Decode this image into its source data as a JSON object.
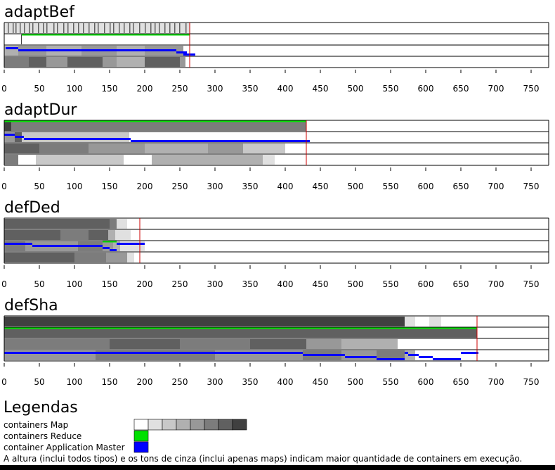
{
  "chart_data": {
    "type": "timeline",
    "x_axis": {
      "min": 0,
      "max": 775,
      "ticks": [
        0,
        50,
        100,
        150,
        200,
        250,
        300,
        350,
        400,
        450,
        500,
        550,
        600,
        650,
        700,
        750
      ]
    },
    "colors": {
      "map_levels": [
        "#ffffff",
        "#e0e0e0",
        "#c8c8c8",
        "#b0b0b0",
        "#989898",
        "#7c7c7c",
        "#606060",
        "#404040"
      ],
      "reduce": "#00e000",
      "app_master": "#0000ff",
      "end_marker": "#cc0000",
      "grid": "#000000"
    },
    "panels": [
      {
        "title": "adaptBef",
        "end_time": 264,
        "rows": [
          {
            "end": 264,
            "segments": [
              [
                0,
                265,
                1
              ],
              [
                5,
                5,
                6
              ],
              [
                12,
                12,
                6
              ],
              [
                16,
                16,
                6
              ],
              [
                22,
                22,
                6
              ],
              [
                28,
                28,
                6
              ],
              [
                35,
                35,
                6
              ],
              [
                40,
                40,
                6
              ],
              [
                48,
                48,
                6
              ],
              [
                55,
                55,
                6
              ],
              [
                60,
                60,
                6
              ],
              [
                70,
                70,
                6
              ],
              [
                75,
                75,
                6
              ],
              [
                84,
                84,
                6
              ],
              [
                90,
                90,
                6
              ],
              [
                98,
                98,
                6
              ],
              [
                105,
                105,
                6
              ],
              [
                112,
                112,
                6
              ],
              [
                120,
                120,
                6
              ],
              [
                128,
                128,
                6
              ],
              [
                133,
                133,
                6
              ],
              [
                142,
                142,
                6
              ],
              [
                150,
                150,
                6
              ],
              [
                155,
                155,
                6
              ],
              [
                163,
                163,
                6
              ],
              [
                170,
                170,
                6
              ],
              [
                178,
                178,
                6
              ],
              [
                183,
                183,
                6
              ],
              [
                192,
                192,
                6
              ],
              [
                200,
                200,
                6
              ],
              [
                208,
                208,
                6
              ],
              [
                214,
                214,
                6
              ],
              [
                220,
                220,
                6
              ],
              [
                228,
                228,
                6
              ],
              [
                235,
                235,
                6
              ],
              [
                242,
                242,
                6
              ],
              [
                249,
                249,
                6
              ],
              [
                258,
                258,
                6
              ]
            ],
            "reduce": [],
            "am": []
          },
          {
            "end": 268,
            "segments": [
              [
                0,
                24,
                0
              ],
              [
                24,
                25,
                7
              ],
              [
                25,
                264,
                0
              ]
            ],
            "reduce": [
              [
                25,
                264
              ]
            ],
            "am": []
          },
          {
            "end": 264,
            "segments": [
              [
                0,
                20,
                3
              ],
              [
                20,
                60,
                4
              ],
              [
                60,
                110,
                3
              ],
              [
                110,
                160,
                4
              ],
              [
                160,
                200,
                3
              ],
              [
                200,
                255,
                4
              ]
            ],
            "reduce": [],
            "am": [
              [
                2,
                20
              ],
              [
                20,
                245
              ],
              [
                245,
                260
              ],
              [
                255,
                272
              ]
            ]
          },
          {
            "end": 264,
            "segments": [
              [
                0,
                35,
                5
              ],
              [
                35,
                60,
                6
              ],
              [
                60,
                90,
                4
              ],
              [
                90,
                140,
                6
              ],
              [
                140,
                160,
                4
              ],
              [
                160,
                200,
                3
              ],
              [
                200,
                250,
                6
              ],
              [
                250,
                258,
                4
              ]
            ],
            "reduce": [],
            "am": []
          }
        ]
      },
      {
        "title": "adaptDur",
        "end_time": 430,
        "rows": [
          {
            "end": 430,
            "segments": [
              [
                0,
                10,
                7
              ],
              [
                10,
                430,
                5
              ]
            ],
            "reduce": [
              [
                0,
                430
              ]
            ],
            "am": []
          },
          {
            "end": 436,
            "segments": [
              [
                0,
                15,
                4
              ],
              [
                15,
                25,
                6
              ],
              [
                25,
                178,
                2
              ],
              [
                178,
                436,
                0
              ]
            ],
            "reduce": [],
            "am": [
              [
                0,
                15
              ],
              [
                15,
                28
              ],
              [
                28,
                180
              ],
              [
                180,
                435
              ]
            ]
          },
          {
            "end": 430,
            "segments": [
              [
                0,
                50,
                6
              ],
              [
                50,
                120,
                5
              ],
              [
                120,
                200,
                4
              ],
              [
                200,
                290,
                3
              ],
              [
                290,
                340,
                4
              ],
              [
                340,
                400,
                2
              ],
              [
                400,
                415,
                0
              ]
            ],
            "reduce": [],
            "am": []
          },
          {
            "end": 430,
            "segments": [
              [
                0,
                20,
                5
              ],
              [
                20,
                45,
                0
              ],
              [
                45,
                170,
                2
              ],
              [
                170,
                210,
                0
              ],
              [
                210,
                368,
                3
              ],
              [
                368,
                385,
                1
              ]
            ],
            "reduce": [],
            "am": []
          }
        ]
      },
      {
        "title": "defDed",
        "end_time": 193,
        "rows": [
          {
            "end": 193,
            "segments": [
              [
                0,
                90,
                6
              ],
              [
                90,
                150,
                6
              ],
              [
                150,
                160,
                5
              ],
              [
                160,
                175,
                1
              ]
            ],
            "reduce": [],
            "am": []
          },
          {
            "end": 193,
            "segments": [
              [
                0,
                40,
                6
              ],
              [
                40,
                80,
                6
              ],
              [
                80,
                120,
                5
              ],
              [
                120,
                148,
                6
              ],
              [
                148,
                158,
                3
              ],
              [
                158,
                180,
                1
              ]
            ],
            "reduce": [],
            "am": []
          },
          {
            "end": 193,
            "segments": [
              [
                0,
                30,
                5
              ],
              [
                30,
                105,
                4
              ],
              [
                105,
                140,
                5
              ],
              [
                140,
                155,
                4
              ],
              [
                155,
                165,
                3
              ],
              [
                165,
                200,
                1
              ]
            ],
            "reduce": [
              [
                140,
                160
              ]
            ],
            "am": [
              [
                0,
                40
              ],
              [
                40,
                140
              ],
              [
                140,
                150
              ],
              [
                150,
                160
              ],
              [
                160,
                200
              ]
            ]
          },
          {
            "end": 193,
            "segments": [
              [
                0,
                30,
                6
              ],
              [
                30,
                100,
                6
              ],
              [
                100,
                145,
                5
              ],
              [
                145,
                175,
                4
              ],
              [
                175,
                185,
                1
              ]
            ],
            "reduce": [],
            "am": []
          }
        ]
      },
      {
        "title": "defSha",
        "end_time": 673,
        "rows": [
          {
            "end": 673,
            "segments": [
              [
                0,
                570,
                7
              ],
              [
                570,
                585,
                1
              ],
              [
                585,
                605,
                0
              ],
              [
                605,
                622,
                1
              ]
            ],
            "reduce": [],
            "am": []
          },
          {
            "end": 673,
            "segments": [
              [
                0,
                673,
                6
              ]
            ],
            "reduce": [
              [
                0,
                673
              ]
            ],
            "am": []
          },
          {
            "end": 673,
            "segments": [
              [
                0,
                150,
                5
              ],
              [
                150,
                250,
                6
              ],
              [
                250,
                350,
                5
              ],
              [
                350,
                430,
                6
              ],
              [
                430,
                480,
                4
              ],
              [
                480,
                560,
                3
              ],
              [
                560,
                610,
                0
              ],
              [
                610,
                640,
                0
              ]
            ],
            "reduce": [],
            "am": []
          },
          {
            "end": 673,
            "segments": [
              [
                0,
                130,
                4
              ],
              [
                130,
                300,
                5
              ],
              [
                300,
                425,
                4
              ],
              [
                425,
                480,
                5
              ],
              [
                480,
                530,
                4
              ],
              [
                530,
                570,
                5
              ],
              [
                570,
                585,
                3
              ],
              [
                585,
                673,
                0
              ]
            ],
            "reduce": [],
            "am": [
              [
                0,
                425
              ],
              [
                425,
                485
              ],
              [
                485,
                530
              ],
              [
                530,
                570
              ],
              [
                570,
                575
              ],
              [
                575,
                590
              ],
              [
                590,
                610
              ],
              [
                610,
                650
              ],
              [
                650,
                675
              ]
            ]
          }
        ]
      }
    ]
  },
  "legend": {
    "title": "Legendas",
    "items": [
      {
        "label": "containers Map",
        "kind": "map_levels"
      },
      {
        "label": "containers Reduce",
        "kind": "reduce"
      },
      {
        "label": "container Application Master",
        "kind": "app_master"
      }
    ],
    "note": "A altura (inclui todos tipos) e os tons de cinza (inclui apenas maps) indicam maior quantidade de containers em execução."
  }
}
